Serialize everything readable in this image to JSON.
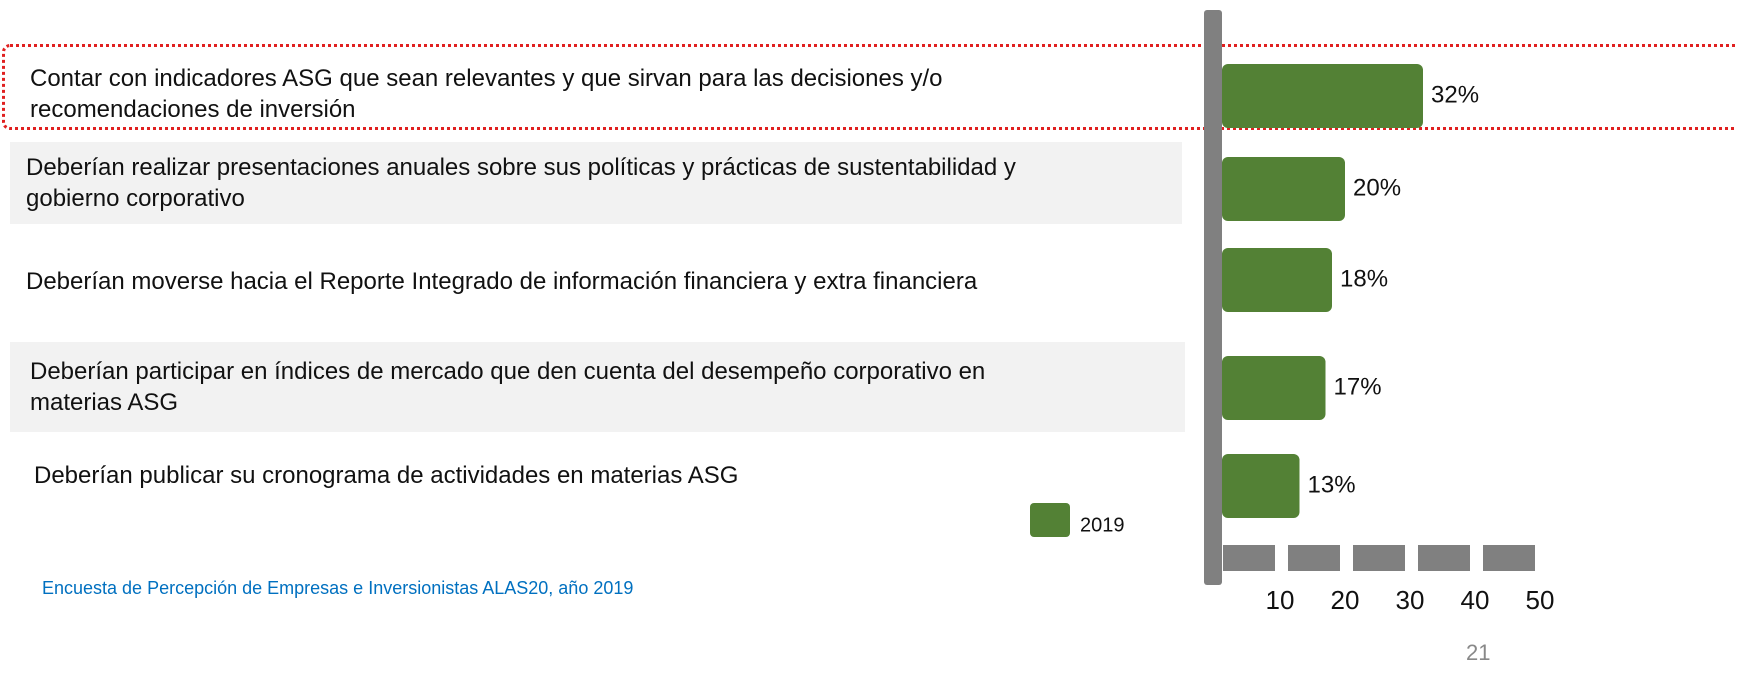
{
  "chart_data": {
    "type": "bar",
    "orientation": "horizontal",
    "categories": [
      "Contar con indicadores ASG que sean relevantes y que sirvan para las decisiones y/o recomendaciones de inversión",
      "Deberían realizar presentaciones anuales sobre sus políticas y prácticas de sustentabilidad y gobierno corporativo",
      "Deberían moverse hacia el Reporte Integrado de información financiera y extra financiera",
      "Deberían participar en índices de mercado que den cuenta del desempeño corporativo en materias ASG",
      "Deberían publicar su cronograma de actividades en materias ASG"
    ],
    "series": [
      {
        "name": "2019",
        "color": "#538135",
        "values": [
          32,
          20,
          18,
          17,
          13
        ],
        "value_labels": [
          "32%",
          "20%",
          "18%",
          "17%",
          "13%"
        ]
      }
    ],
    "xlim": [
      0,
      50
    ],
    "xticks": [
      10,
      20,
      30,
      40,
      50
    ],
    "source": "Encuesta de Percepción de Empresas e Inversionistas ALAS20, año 2019",
    "page_number": "21"
  }
}
